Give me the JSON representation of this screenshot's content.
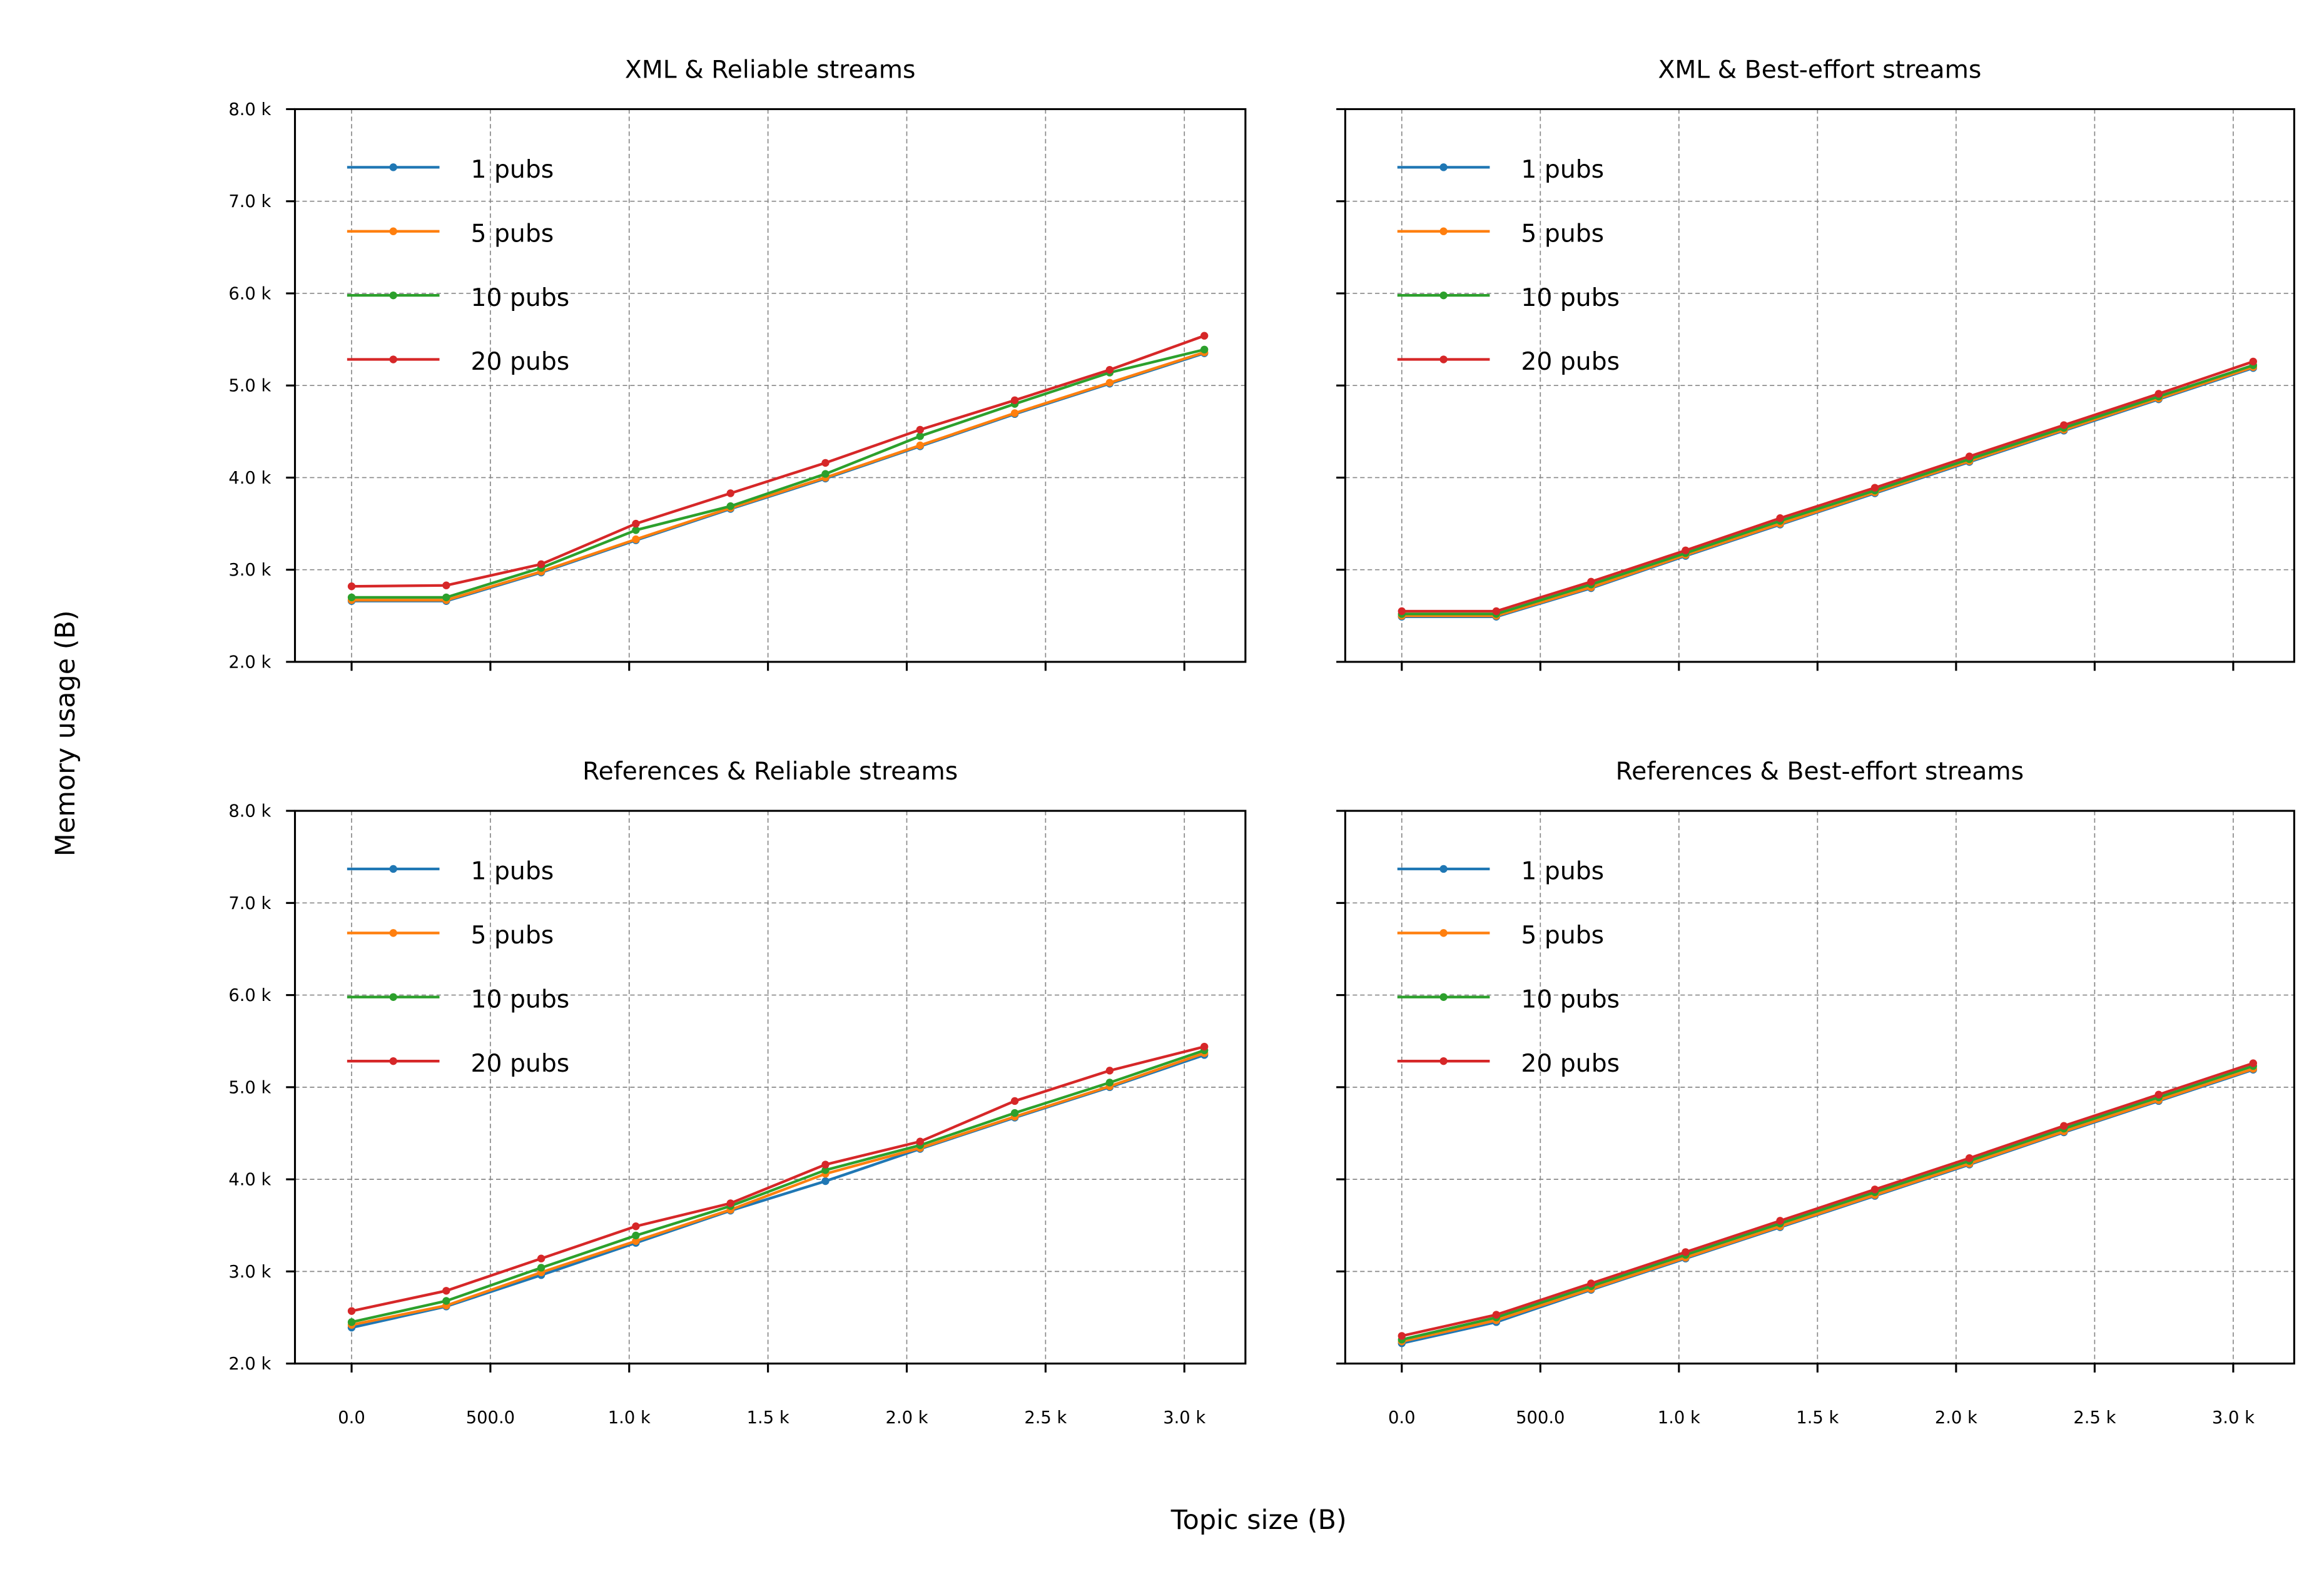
{
  "figure": {
    "xlabel": "Topic size (B)",
    "ylabel": "Memory usage (B)"
  },
  "colors": {
    "1 pubs": "#1f77b4",
    "5 pubs": "#ff7f0e",
    "10 pubs": "#2ca02c",
    "20 pubs": "#d62728"
  },
  "chart_data": [
    {
      "type": "line",
      "title": "XML & Reliable streams",
      "legend": "upper-left",
      "grid": true,
      "x": [
        0,
        341,
        683,
        1024,
        1365,
        1707,
        2048,
        2389,
        2731,
        3072
      ],
      "xlim": [
        -204,
        3220
      ],
      "ylim": [
        2000,
        8000
      ],
      "xticks": [
        0,
        500,
        1000,
        1500,
        2000,
        2500,
        3000
      ],
      "xtick_labels": [
        "0.0",
        "500.0",
        "1.0 k",
        "1.5 k",
        "2.0 k",
        "2.5 k",
        "3.0 k"
      ],
      "yticks": [
        2000,
        3000,
        4000,
        5000,
        6000,
        7000,
        8000
      ],
      "ytick_labels": [
        "2.0 k",
        "3.0 k",
        "4.0 k",
        "5.0 k",
        "6.0 k",
        "7.0 k",
        "8.0 k"
      ],
      "series": [
        {
          "name": "1 pubs",
          "values": [
            2660,
            2660,
            2970,
            3320,
            3660,
            3990,
            4340,
            4690,
            5020,
            5350
          ]
        },
        {
          "name": "5 pubs",
          "values": [
            2670,
            2670,
            2980,
            3330,
            3670,
            4000,
            4350,
            4700,
            5030,
            5360
          ]
        },
        {
          "name": "10 pubs",
          "values": [
            2700,
            2700,
            3020,
            3430,
            3690,
            4040,
            4450,
            4800,
            5140,
            5390
          ]
        },
        {
          "name": "20 pubs",
          "values": [
            2820,
            2830,
            3060,
            3500,
            3830,
            4160,
            4520,
            4840,
            5170,
            5540
          ]
        }
      ]
    },
    {
      "type": "line",
      "title": "XML & Best-effort streams",
      "legend": "upper-left",
      "grid": true,
      "x": [
        0,
        341,
        683,
        1024,
        1365,
        1707,
        2048,
        2389,
        2731,
        3072
      ],
      "xlim": [
        -204,
        3220
      ],
      "ylim": [
        2000,
        8000
      ],
      "xticks": [
        0,
        500,
        1000,
        1500,
        2000,
        2500,
        3000
      ],
      "xtick_labels": [
        "0.0",
        "500.0",
        "1.0 k",
        "1.5 k",
        "2.0 k",
        "2.5 k",
        "3.0 k"
      ],
      "yticks": [
        2000,
        3000,
        4000,
        5000,
        6000,
        7000,
        8000
      ],
      "ytick_labels": [
        "2.0 k",
        "3.0 k",
        "4.0 k",
        "5.0 k",
        "6.0 k",
        "7.0 k",
        "8.0 k"
      ],
      "series": [
        {
          "name": "1 pubs",
          "values": [
            2490,
            2490,
            2800,
            3150,
            3490,
            3830,
            4170,
            4510,
            4850,
            5190
          ]
        },
        {
          "name": "5 pubs",
          "values": [
            2500,
            2500,
            2810,
            3160,
            3500,
            3840,
            4180,
            4520,
            4860,
            5200
          ]
        },
        {
          "name": "10 pubs",
          "values": [
            2520,
            2520,
            2840,
            3180,
            3530,
            3860,
            4200,
            4540,
            4880,
            5220
          ]
        },
        {
          "name": "20 pubs",
          "values": [
            2550,
            2550,
            2870,
            3210,
            3560,
            3890,
            4230,
            4570,
            4910,
            5260
          ]
        }
      ]
    },
    {
      "type": "line",
      "title": "References & Reliable streams",
      "legend": "upper-left",
      "grid": true,
      "x": [
        0,
        341,
        683,
        1024,
        1365,
        1707,
        2048,
        2389,
        2731,
        3072
      ],
      "xlim": [
        -204,
        3220
      ],
      "ylim": [
        2000,
        8000
      ],
      "xticks": [
        0,
        500,
        1000,
        1500,
        2000,
        2500,
        3000
      ],
      "xtick_labels": [
        "0.0",
        "500.0",
        "1.0 k",
        "1.5 k",
        "2.0 k",
        "2.5 k",
        "3.0 k"
      ],
      "yticks": [
        2000,
        3000,
        4000,
        5000,
        6000,
        7000,
        8000
      ],
      "ytick_labels": [
        "2.0 k",
        "3.0 k",
        "4.0 k",
        "5.0 k",
        "6.0 k",
        "7.0 k",
        "8.0 k"
      ],
      "series": [
        {
          "name": "1 pubs",
          "values": [
            2390,
            2620,
            2960,
            3310,
            3660,
            3980,
            4330,
            4670,
            5000,
            5350
          ]
        },
        {
          "name": "5 pubs",
          "values": [
            2420,
            2630,
            2990,
            3330,
            3670,
            4060,
            4340,
            4680,
            5010,
            5370
          ]
        },
        {
          "name": "10 pubs",
          "values": [
            2450,
            2680,
            3040,
            3390,
            3710,
            4100,
            4370,
            4720,
            5050,
            5400
          ]
        },
        {
          "name": "20 pubs",
          "values": [
            2570,
            2790,
            3140,
            3490,
            3740,
            4160,
            4410,
            4850,
            5180,
            5440
          ]
        }
      ]
    },
    {
      "type": "line",
      "title": "References & Best-effort streams",
      "legend": "upper-left",
      "grid": true,
      "x": [
        0,
        341,
        683,
        1024,
        1365,
        1707,
        2048,
        2389,
        2731,
        3072
      ],
      "xlim": [
        -204,
        3220
      ],
      "ylim": [
        2000,
        8000
      ],
      "xticks": [
        0,
        500,
        1000,
        1500,
        2000,
        2500,
        3000
      ],
      "xtick_labels": [
        "0.0",
        "500.0",
        "1.0 k",
        "1.5 k",
        "2.0 k",
        "2.5 k",
        "3.0 k"
      ],
      "yticks": [
        2000,
        3000,
        4000,
        5000,
        6000,
        7000,
        8000
      ],
      "ytick_labels": [
        "2.0 k",
        "3.0 k",
        "4.0 k",
        "5.0 k",
        "6.0 k",
        "7.0 k",
        "8.0 k"
      ],
      "series": [
        {
          "name": "1 pubs",
          "values": [
            2220,
            2450,
            2800,
            3140,
            3480,
            3820,
            4160,
            4510,
            4850,
            5190
          ]
        },
        {
          "name": "5 pubs",
          "values": [
            2240,
            2470,
            2810,
            3150,
            3490,
            3830,
            4170,
            4520,
            4860,
            5200
          ]
        },
        {
          "name": "10 pubs",
          "values": [
            2260,
            2500,
            2840,
            3180,
            3520,
            3860,
            4200,
            4550,
            4890,
            5230
          ]
        },
        {
          "name": "20 pubs",
          "values": [
            2300,
            2530,
            2870,
            3210,
            3550,
            3890,
            4230,
            4580,
            4920,
            5260
          ]
        }
      ]
    }
  ]
}
